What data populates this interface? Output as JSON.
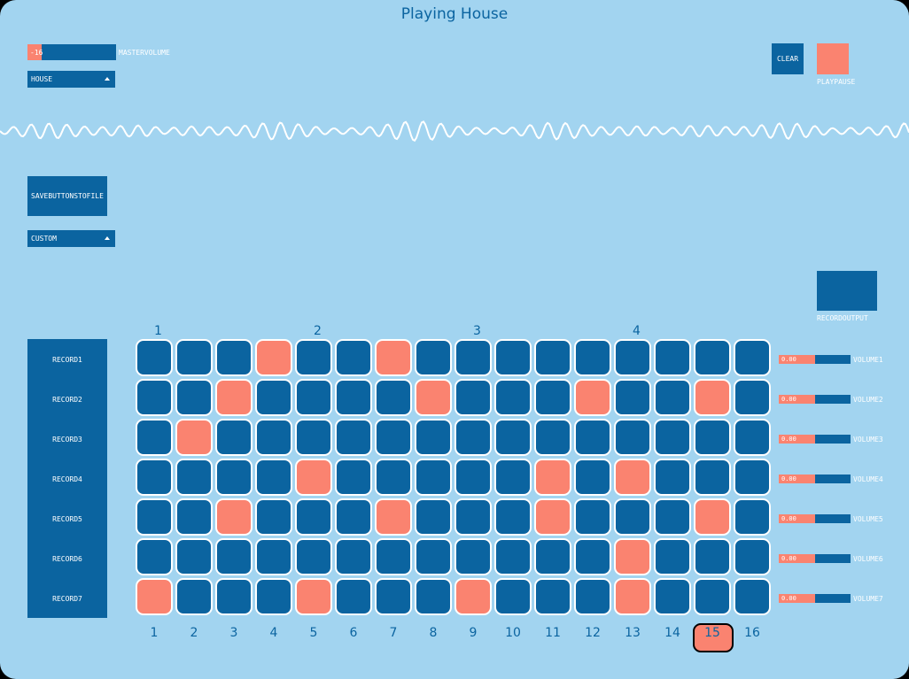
{
  "title": "Playing House",
  "master_volume": {
    "value_text": "-16",
    "label": "MASTERVOLUME",
    "level": 0.16
  },
  "preset_dropdown": {
    "value": "HOUSE"
  },
  "clear_button": {
    "label": "CLEAR"
  },
  "play_pause": {
    "label": "PLAYPAUSE"
  },
  "save_button": {
    "label": "SAVEBUTTONSTOFILE"
  },
  "pattern_dropdown": {
    "value": "CUSTOM"
  },
  "record_output": {
    "label": "RECORDOUTPUT"
  },
  "beats": [
    "1",
    "2",
    "3",
    "4"
  ],
  "steps": [
    "1",
    "2",
    "3",
    "4",
    "5",
    "6",
    "7",
    "8",
    "9",
    "10",
    "11",
    "12",
    "13",
    "14",
    "15",
    "16"
  ],
  "current_step": 15,
  "colors": {
    "background": "#a2d4f0",
    "primary": "#0b64a0",
    "active": "#fa8370"
  },
  "tracks": [
    {
      "record_label": "RECORD1",
      "volume_label": "VOLUME1",
      "volume_text": "0.00",
      "volume_level": 0.5,
      "pattern": [
        0,
        0,
        0,
        1,
        0,
        0,
        1,
        0,
        0,
        0,
        0,
        0,
        0,
        0,
        0,
        0
      ]
    },
    {
      "record_label": "RECORD2",
      "volume_label": "VOLUME2",
      "volume_text": "0.00",
      "volume_level": 0.5,
      "pattern": [
        0,
        0,
        1,
        0,
        0,
        0,
        0,
        1,
        0,
        0,
        0,
        1,
        0,
        0,
        1,
        0
      ]
    },
    {
      "record_label": "RECORD3",
      "volume_label": "VOLUME3",
      "volume_text": "0.00",
      "volume_level": 0.5,
      "pattern": [
        0,
        1,
        0,
        0,
        0,
        0,
        0,
        0,
        0,
        0,
        0,
        0,
        0,
        0,
        0,
        0
      ]
    },
    {
      "record_label": "RECORD4",
      "volume_label": "VOLUME4",
      "volume_text": "0.00",
      "volume_level": 0.5,
      "pattern": [
        0,
        0,
        0,
        0,
        1,
        0,
        0,
        0,
        0,
        0,
        1,
        0,
        1,
        0,
        0,
        0
      ]
    },
    {
      "record_label": "RECORD5",
      "volume_label": "VOLUME5",
      "volume_text": "0.00",
      "volume_level": 0.5,
      "pattern": [
        0,
        0,
        1,
        0,
        0,
        0,
        1,
        0,
        0,
        0,
        1,
        0,
        0,
        0,
        1,
        0
      ]
    },
    {
      "record_label": "RECORD6",
      "volume_label": "VOLUME6",
      "volume_text": "0.00",
      "volume_level": 0.5,
      "pattern": [
        0,
        0,
        0,
        0,
        0,
        0,
        0,
        0,
        0,
        0,
        0,
        0,
        1,
        0,
        0,
        0
      ]
    },
    {
      "record_label": "RECORD7",
      "volume_label": "VOLUME7",
      "volume_text": "0.00",
      "volume_level": 0.5,
      "pattern": [
        1,
        0,
        0,
        0,
        1,
        0,
        0,
        0,
        1,
        0,
        0,
        0,
        1,
        0,
        0,
        0
      ]
    }
  ]
}
